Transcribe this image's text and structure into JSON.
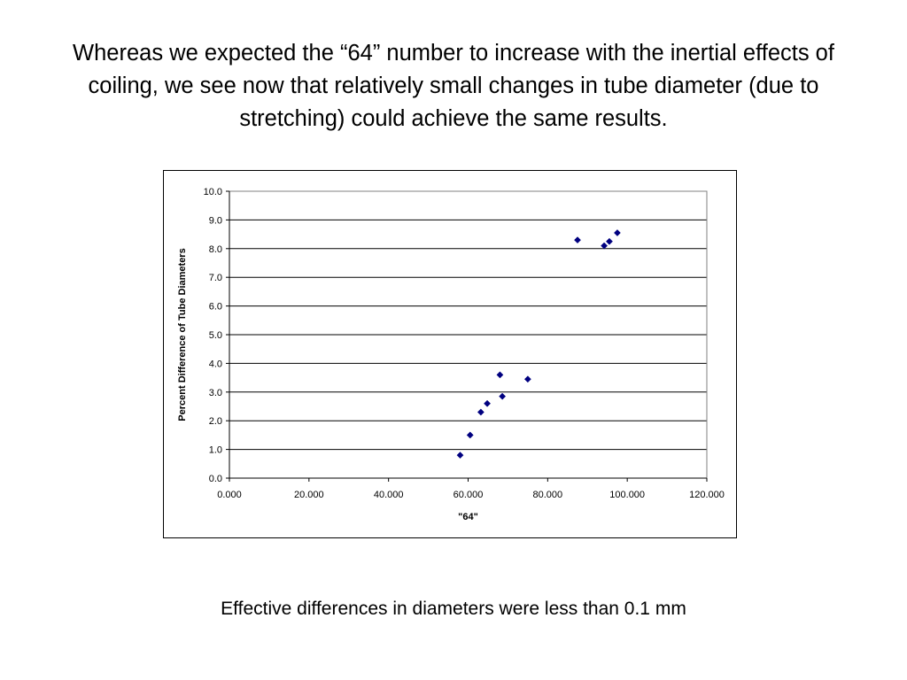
{
  "slide": {
    "heading": "Whereas we expected the “64” number to increase with the inertial effects of coiling, we see now that relatively small changes in tube diameter (due to stretching) could achieve the same results.",
    "footnote": "Effective differences in diameters were less than 0.1 mm"
  },
  "chart_data": {
    "type": "scatter",
    "title": "",
    "xlabel": "\"64\"",
    "ylabel": "Percent Difference of Tube Diameters",
    "xlim": [
      0,
      120
    ],
    "ylim": [
      0,
      10
    ],
    "x_ticks": [
      "0.000",
      "20.000",
      "40.000",
      "60.000",
      "80.000",
      "100.000",
      "120.000"
    ],
    "y_ticks": [
      "0.0",
      "1.0",
      "2.0",
      "3.0",
      "4.0",
      "5.0",
      "6.0",
      "7.0",
      "8.0",
      "9.0",
      "10.0"
    ],
    "grid": "horizontal major gridlines",
    "legend": "none",
    "marker_color": "#000080",
    "series": [
      {
        "points": [
          {
            "x": 58.0,
            "y": 0.8
          },
          {
            "x": 60.5,
            "y": 1.5
          },
          {
            "x": 63.2,
            "y": 2.3
          },
          {
            "x": 64.8,
            "y": 2.6
          },
          {
            "x": 68.0,
            "y": 3.6
          },
          {
            "x": 68.6,
            "y": 2.85
          },
          {
            "x": 75.0,
            "y": 3.45
          },
          {
            "x": 87.5,
            "y": 8.3
          },
          {
            "x": 94.2,
            "y": 8.1
          },
          {
            "x": 95.5,
            "y": 8.25
          },
          {
            "x": 97.5,
            "y": 8.55
          }
        ]
      }
    ]
  }
}
